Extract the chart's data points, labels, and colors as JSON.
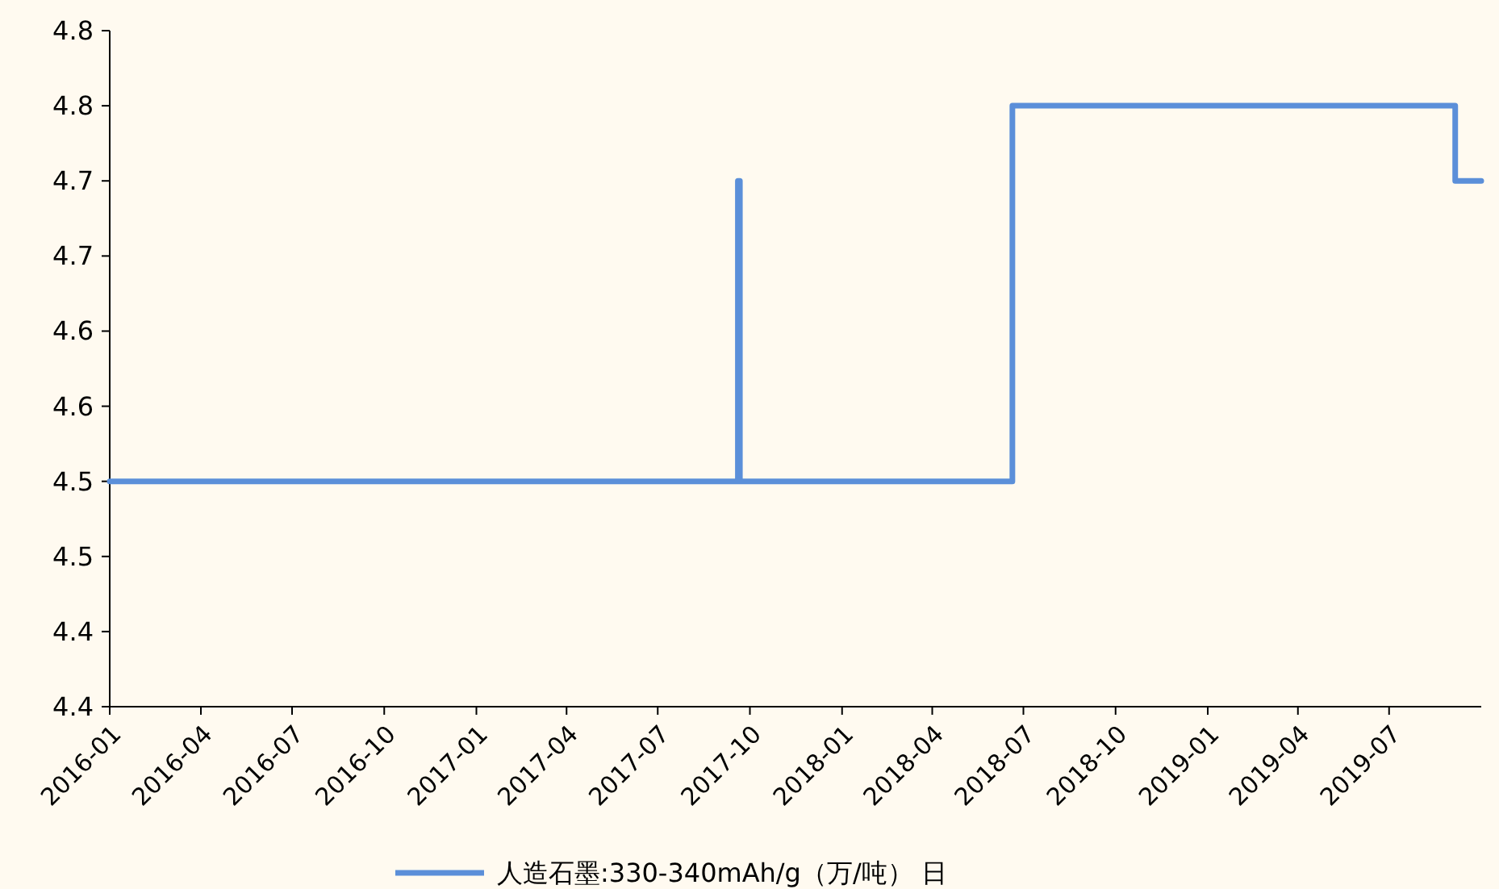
{
  "chart_data": {
    "type": "step",
    "x": [
      "2016-01-01",
      "2017-09-19",
      "2017-09-21",
      "2018-06-20",
      "2019-09-05",
      "2019-10-01"
    ],
    "series": [
      {
        "name": "人造石墨:330-340mAh/g（万/吨） 日",
        "color": "#5b8fd9",
        "values": [
          4.5,
          4.7,
          4.5,
          4.75,
          4.7,
          4.7
        ]
      }
    ],
    "xlim": [
      "2016-01-01",
      "2019-10-01"
    ],
    "xticks": [
      "2016-01",
      "2016-04",
      "2016-07",
      "2016-10",
      "2017-01",
      "2017-04",
      "2017-07",
      "2017-10",
      "2018-01",
      "2018-04",
      "2018-07",
      "2018-10",
      "2019-01",
      "2019-04",
      "2019-07"
    ],
    "ylim": [
      4.35,
      4.8
    ],
    "yticks": [
      {
        "value": 4.35,
        "label": "4.4"
      },
      {
        "value": 4.4,
        "label": "4.4"
      },
      {
        "value": 4.45,
        "label": "4.5"
      },
      {
        "value": 4.5,
        "label": "4.5"
      },
      {
        "value": 4.55,
        "label": "4.6"
      },
      {
        "value": 4.6,
        "label": "4.6"
      },
      {
        "value": 4.65,
        "label": "4.7"
      },
      {
        "value": 4.7,
        "label": "4.7"
      },
      {
        "value": 4.75,
        "label": "4.8"
      },
      {
        "value": 4.8,
        "label": "4.8"
      }
    ],
    "grid": false,
    "legend": "bottom"
  }
}
